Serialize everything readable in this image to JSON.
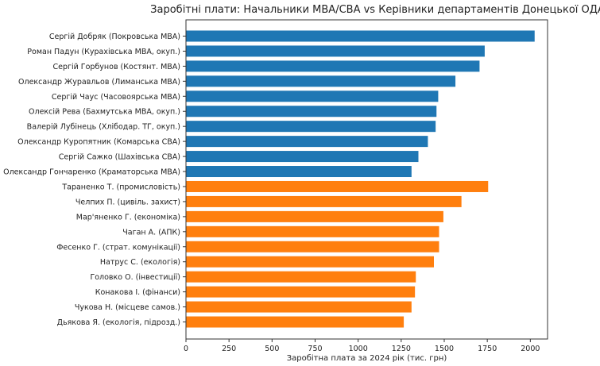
{
  "chart_data": {
    "type": "bar",
    "orientation": "horizontal",
    "title": "Заробітні плати: Начальники МВА/СВА vs Керівники департаментів Донецької ОДА",
    "xlabel": "Заробітна плата за 2024 рік (тис. грн)",
    "ylabel": "",
    "xlim": [
      0,
      2100
    ],
    "xticks": [
      0,
      250,
      500,
      750,
      1000,
      1250,
      1500,
      1750,
      2000
    ],
    "grid": false,
    "colors": {
      "mva": "#1f77b4",
      "oda": "#ff7f0e"
    },
    "categories": [
      "Сергій Добряк (Покровська МВА)",
      "Роман Падун (Курахівська МВА, окуп.)",
      "Сергій Горбунов (Костянт. МВА)",
      "Олександр Журавльов (Лиманська МВА)",
      "Сергій Чаус (Часовоярська МВА)",
      "Олексій Рева (Бахмутська МВА, окуп.)",
      "Валерій Лубінець (Хлібодар. ТГ, окуп.)",
      "Олександр Куропятник (Комарська СВА)",
      "Сергій Сажко (Шахівська СВА)",
      "Олександр Гончаренко (Краматорська МВА)",
      "Тараненко Т. (промисловість)",
      "Челпих П. (цивіль. захист)",
      "Мар'яненко Г. (економіка)",
      "Чаган А. (АПК)",
      "Фесенко Г. (страт. комунікації)",
      "Натрус С. (екологія)",
      "Головко О. (інвестиції)",
      "Конакова І. (фінанси)",
      "Чукова Н. (місцеве самов.)",
      "Дьякова Я. (екологія, підрозд.)"
    ],
    "values": [
      2025,
      1735,
      1705,
      1565,
      1465,
      1455,
      1450,
      1405,
      1350,
      1310,
      1755,
      1600,
      1495,
      1470,
      1470,
      1440,
      1335,
      1330,
      1310,
      1265
    ],
    "groups": [
      "mva",
      "mva",
      "mva",
      "mva",
      "mva",
      "mva",
      "mva",
      "mva",
      "mva",
      "mva",
      "oda",
      "oda",
      "oda",
      "oda",
      "oda",
      "oda",
      "oda",
      "oda",
      "oda",
      "oda"
    ]
  }
}
